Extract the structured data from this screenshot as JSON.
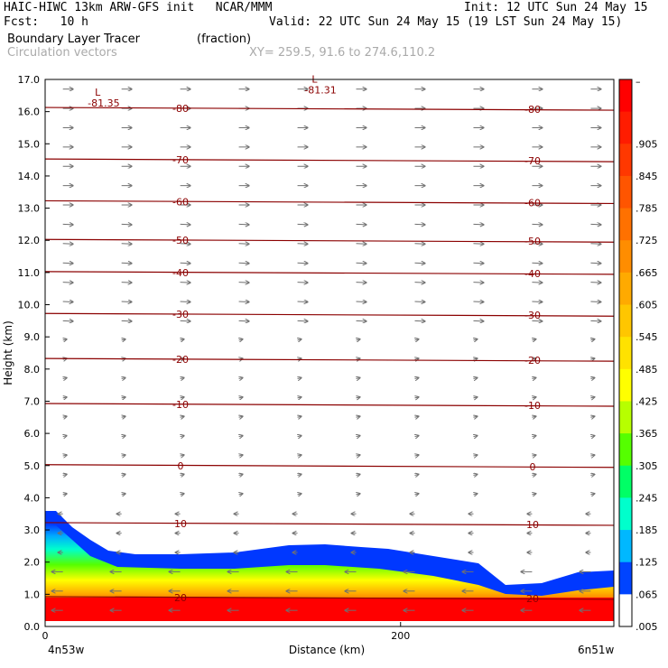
{
  "header": {
    "left_line1": "HAIC-HIWC 13km ARW-GFS init   NCAR/MMM",
    "left_line2": "Fcst:   10 h",
    "right_line1": "Init: 12 UTC Sun 24 May 15",
    "right_line2": "Valid: 22 UTC Sun 24 May 15 (19 LST Sun 24 May 15)",
    "field_name": "Boundary Layer Tracer",
    "field_units": "(fraction)",
    "overlay_name": "Circulation vectors",
    "cross_section": "XY= 259.5, 91.6 to 274.6,110.2"
  },
  "chart_data": {
    "type": "heatmap",
    "ylabel": "Height (km)",
    "xlabel": "Distance (km)",
    "y_ticks": [
      "17.0",
      "16.0",
      "15.0",
      "14.0",
      "13.0",
      "12.0",
      "11.0",
      "10.0",
      "9.0",
      "8.0",
      "7.0",
      "6.0",
      "5.0",
      "4.0",
      "3.0",
      "2.0",
      "1.0",
      "0.0"
    ],
    "ylim": [
      0,
      17
    ],
    "xlim": [
      0,
      320
    ],
    "x_ticks": [
      "0",
      "200"
    ],
    "x_tick_values": [
      0,
      200
    ],
    "left_endpoint_label": "4n53w",
    "right_endpoint_label": "6n51w",
    "colorbar_labels": [
      "–",
      ".905",
      ".845",
      ".785",
      ".725",
      ".665",
      ".605",
      ".545",
      ".485",
      ".425",
      ".365",
      ".305",
      ".245",
      ".185",
      ".125",
      ".065",
      ".005"
    ],
    "colorbar_colors": [
      "#ff0000",
      "#ff1c00",
      "#ff3800",
      "#ff5500",
      "#ff7100",
      "#ff8d00",
      "#ffaa00",
      "#ffc600",
      "#ffe200",
      "#ffff00",
      "#b7ff00",
      "#55ff00",
      "#00ff66",
      "#00ffcc",
      "#00b8ff",
      "#0044ff",
      "#ffffff"
    ],
    "temperature_contours": [
      {
        "value": "-80",
        "y": 16.1
      },
      {
        "value": "-70",
        "y": 14.5
      },
      {
        "value": "-60",
        "y": 13.2
      },
      {
        "value": "-50",
        "y": 12.0
      },
      {
        "value": "-40",
        "y": 11.0
      },
      {
        "value": "-30",
        "y": 9.7
      },
      {
        "value": "-20",
        "y": 8.3
      },
      {
        "value": "-10",
        "y": 6.9
      },
      {
        "value": "0",
        "y": 5.0
      },
      {
        "value": "10",
        "y": 3.2
      },
      {
        "value": "20",
        "y": 0.9
      }
    ],
    "lows": [
      {
        "label": "L",
        "value": "-81.35",
        "x": 28,
        "y": 16.5
      },
      {
        "label": "L",
        "value": "-81.31",
        "x": 150,
        "y": 16.9
      }
    ],
    "contour_color": "#8b0000",
    "vector_color": "#707070"
  }
}
